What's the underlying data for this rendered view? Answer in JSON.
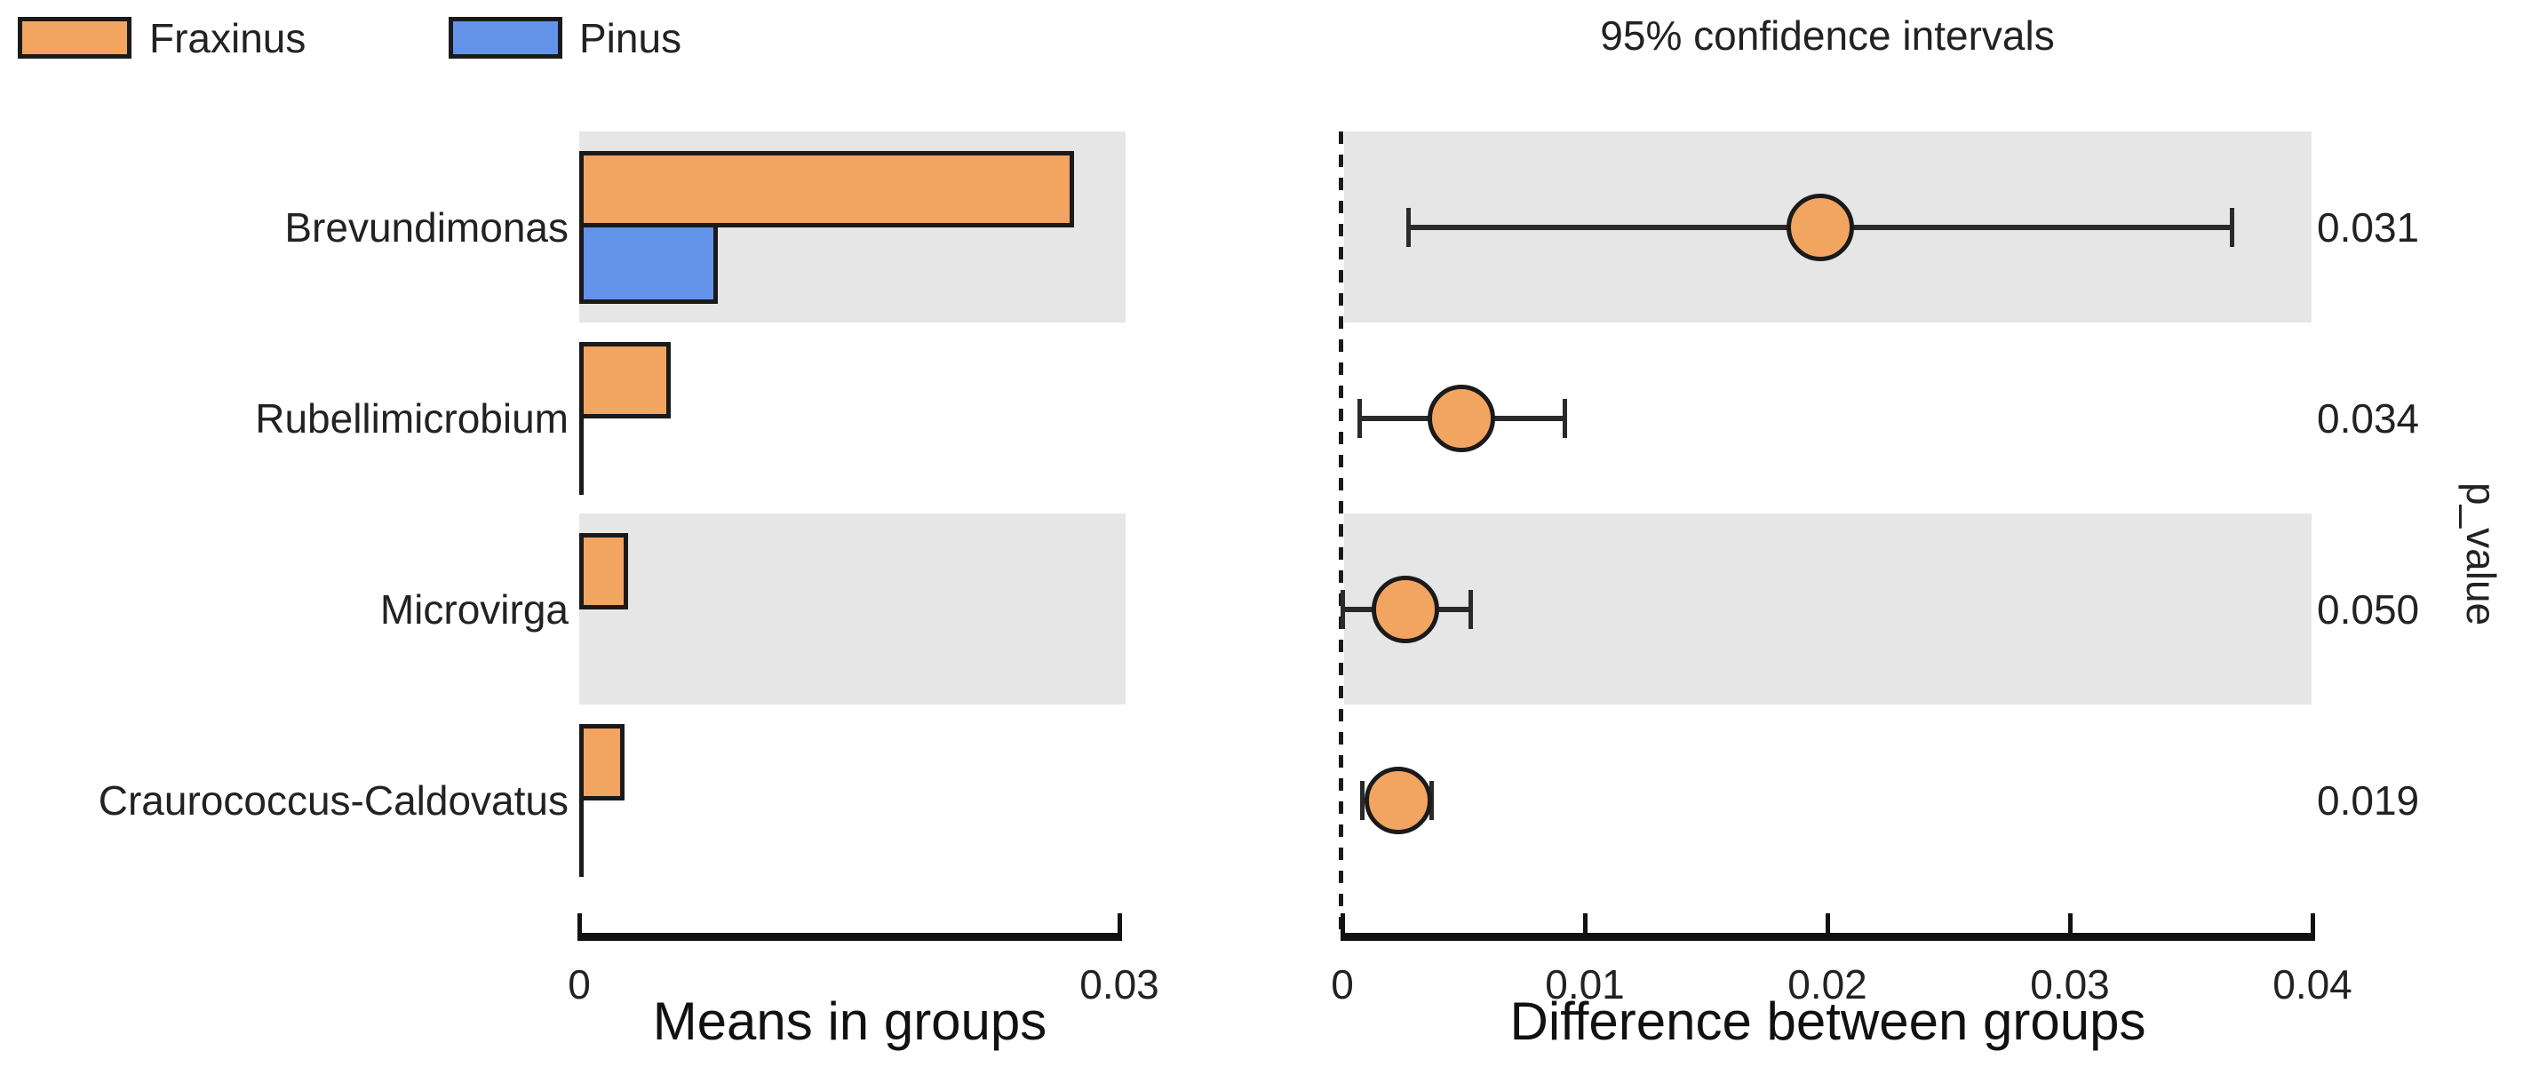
{
  "colors": {
    "fraxinus": "#F2A461",
    "pinus": "#6494EA",
    "row_shading": "#E6E6E6",
    "line": "#1A1A1A",
    "errorbar": "#2A2A2A"
  },
  "chart_data": {
    "type": "extended-error-bar (grouped horizontal bars + dot-and-whisker CI plot)",
    "groups": [
      "Fraxinus",
      "Pinus"
    ],
    "categories": [
      "Brevundimonas",
      "Rubellimicrobium",
      "Microvirga",
      "Craurococcus-Caldovatus"
    ],
    "shaded_rows": [
      0,
      2
    ],
    "means_in_groups": {
      "xlabel": "Means in groups",
      "xlim": [
        0,
        0.03
      ],
      "ticks": [
        0,
        0.03
      ],
      "tick_labels": [
        "0",
        "0.03"
      ],
      "series": [
        {
          "name": "Fraxinus",
          "values": [
            0.0275,
            0.0051,
            0.0027,
            0.0025
          ]
        },
        {
          "name": "Pinus",
          "values": [
            0.0077,
            0.0001,
            0.0,
            0.0001
          ]
        }
      ]
    },
    "difference_between_groups": {
      "title": "95% confidence intervals",
      "xlabel": "Difference between groups",
      "xlim": [
        0,
        0.04
      ],
      "ticks": [
        0,
        0.01,
        0.02,
        0.03,
        0.04
      ],
      "tick_labels": [
        "0",
        "0.01",
        "0.02",
        "0.03",
        "0.04"
      ],
      "dots": [
        0.0197,
        0.0049,
        0.0026,
        0.0023
      ],
      "ci_low": [
        0.0027,
        0.0007,
        0.0,
        0.0008
      ],
      "ci_high": [
        0.0367,
        0.0092,
        0.0053,
        0.0037
      ],
      "zero_line": "dashed"
    },
    "p_values": [
      "0.031",
      "0.034",
      "0.050",
      "0.019"
    ],
    "p_axis_label": "p_value",
    "legend_position": "top-left",
    "grid": false
  }
}
